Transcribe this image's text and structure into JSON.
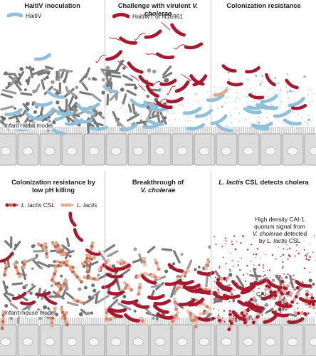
{
  "panels": {
    "p1": {
      "title": "HaitiV inoculation",
      "legend": "HaitiV",
      "note": "Infant rabbit model"
    },
    "p2": {
      "title_pre": "Challenge with virulent ",
      "title_it": "V. cholerae",
      "legend": "HaitiWT or N16961"
    },
    "p3": {
      "title": "Colonization resistance"
    },
    "p4": {
      "title": "Colonization resistance by low pH killing",
      "legend1_it": "L. lactis",
      "legend1_rest": " CSL",
      "legend2_it": "L. lactis",
      "note": "Infant mouse model"
    },
    "p5": {
      "title_line1": "Breakthrough of",
      "title_it": "V. cholerae"
    },
    "p6": {
      "title_it": "L. lactis",
      "title_rest": " CSL detects cholera",
      "annot_l1": "High density CAI-1",
      "annot_l2": "quorum signal from",
      "annot_l3_it": "V. cholerae",
      "annot_l3_rest": " detected",
      "annot_l4_pre": "by ",
      "annot_l4_it": "L. lactis",
      "annot_l4_rest": " CSL",
      "cai_label": "CAI-1"
    }
  },
  "colors": {
    "haitiV": "#8fc0d8",
    "virulent": "#a6192e",
    "lactis": "#e3a88e",
    "commensal": "#7a7a7a",
    "cell_fill": "#dcdcdc",
    "cell_edge": "#8c8c8c",
    "divider": "#c4c4c4"
  },
  "icons": [
    "haitiV-bacterium-icon",
    "virulent-vibrio-icon",
    "lactis-csl-chain-icon",
    "lactis-chain-icon",
    "epithelium-cells",
    "cai1-dots"
  ]
}
